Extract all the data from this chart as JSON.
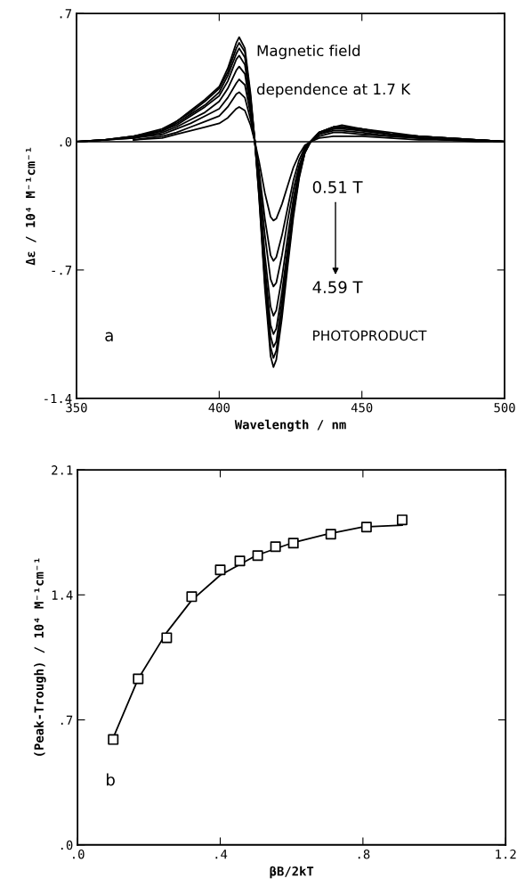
{
  "chart_data": [
    {
      "type": "line",
      "xlabel": "Wavelength / nm",
      "ylabel": "Δε / 10⁴ M⁻¹cm⁻¹",
      "x": [
        350,
        360,
        370,
        380,
        385,
        390,
        395,
        400,
        403,
        406,
        407,
        409,
        411,
        412.5,
        414,
        416,
        418,
        419,
        420,
        422,
        424,
        426,
        428,
        430,
        432,
        435,
        440,
        443,
        450,
        460,
        470,
        480,
        490,
        500
      ],
      "series": [
        {
          "color": "#000000",
          "values": [
            null,
            null,
            0.01,
            0.02,
            0.04,
            0.06,
            0.08,
            0.1,
            0.13,
            0.18,
            0.19,
            0.17,
            0.09,
            0,
            -0.11,
            -0.28,
            -0.41,
            -0.43,
            -0.42,
            -0.34,
            -0.24,
            -0.14,
            -0.07,
            -0.02,
            0,
            0.02,
            0.03,
            0.03,
            0.03,
            0.02,
            0.01,
            0.01,
            0.0,
            0.0
          ]
        },
        {
          "color": "#000000",
          "values": [
            null,
            null,
            0.01,
            0.03,
            0.05,
            0.08,
            0.11,
            0.14,
            0.19,
            0.26,
            0.27,
            0.24,
            0.12,
            0,
            -0.16,
            -0.42,
            -0.62,
            -0.65,
            -0.63,
            -0.51,
            -0.36,
            -0.21,
            -0.1,
            -0.03,
            0,
            0.03,
            0.05,
            0.05,
            0.04,
            0.03,
            0.02,
            0.01,
            0.01,
            0.0
          ]
        },
        {
          "color": "#000000",
          "values": [
            null,
            null,
            0.02,
            0.04,
            0.07,
            0.1,
            0.14,
            0.18,
            0.24,
            0.32,
            0.34,
            0.31,
            0.15,
            0,
            -0.2,
            -0.51,
            -0.75,
            -0.79,
            -0.77,
            -0.62,
            -0.43,
            -0.26,
            -0.13,
            -0.04,
            0,
            0.04,
            0.06,
            0.06,
            0.05,
            0.03,
            0.02,
            0.01,
            0.01,
            0.0
          ]
        },
        {
          "color": "#000000",
          "values": [
            0,
            0.01,
            0.02,
            0.05,
            0.08,
            0.12,
            0.16,
            0.22,
            0.29,
            0.39,
            0.41,
            0.37,
            0.18,
            0,
            -0.24,
            -0.62,
            -0.9,
            -0.95,
            -0.92,
            -0.74,
            -0.52,
            -0.31,
            -0.15,
            -0.05,
            0,
            0.04,
            0.07,
            0.07,
            0.06,
            0.04,
            0.02,
            0.01,
            0.01,
            0.0
          ]
        },
        {
          "color": "#000000",
          "values": [
            0,
            0.01,
            0.02,
            0.06,
            0.09,
            0.14,
            0.19,
            0.25,
            0.33,
            0.45,
            0.47,
            0.42,
            0.21,
            0,
            -0.26,
            -0.68,
            -1.0,
            -1.05,
            -1.02,
            -0.82,
            -0.58,
            -0.35,
            -0.17,
            -0.05,
            0,
            0.05,
            0.07,
            0.08,
            0.06,
            0.04,
            0.03,
            0.02,
            0.01,
            0.0
          ]
        },
        {
          "color": "#000000",
          "values": [
            0,
            0.01,
            0.03,
            0.06,
            0.1,
            0.15,
            0.2,
            0.27,
            0.36,
            0.48,
            0.51,
            0.46,
            0.23,
            0,
            -0.28,
            -0.73,
            -1.06,
            -1.12,
            -1.09,
            -0.87,
            -0.62,
            -0.37,
            -0.18,
            -0.06,
            0,
            0.05,
            0.08,
            0.08,
            0.07,
            0.04,
            0.03,
            0.02,
            0.01,
            0.0
          ]
        },
        {
          "color": "#000000",
          "values": [
            0,
            0.01,
            0.03,
            0.06,
            0.11,
            0.16,
            0.22,
            0.29,
            0.38,
            0.51,
            0.54,
            0.49,
            0.24,
            0,
            -0.3,
            -0.77,
            -1.12,
            -1.18,
            -1.14,
            -0.92,
            -0.65,
            -0.39,
            -0.19,
            -0.06,
            0,
            0.05,
            0.08,
            0.08,
            0.07,
            0.04,
            0.03,
            0.02,
            0.01,
            0.0
          ]
        },
        {
          "color": "#000000",
          "values": [
            0,
            0.01,
            0.03,
            0.07,
            0.11,
            0.17,
            0.23,
            0.3,
            0.4,
            0.54,
            0.57,
            0.51,
            0.26,
            0,
            -0.31,
            -0.8,
            -1.17,
            -1.23,
            -1.19,
            -0.96,
            -0.68,
            -0.41,
            -0.2,
            -0.06,
            0,
            0.05,
            0.08,
            0.09,
            0.07,
            0.05,
            0.03,
            0.02,
            0.01,
            0.0
          ]
        }
      ],
      "xlim": [
        350,
        500
      ],
      "xticks": [
        350,
        400,
        450,
        500
      ],
      "ylim": [
        -1.4,
        0.7
      ],
      "yticks": [
        {
          "value": -1.4,
          "label": "-1.4"
        },
        {
          "value": -0.7,
          "label": "-.7"
        },
        {
          "value": 0,
          "label": ".0"
        },
        {
          "value": 0.7,
          "label": ".7"
        }
      ],
      "ref_lines": [
        {
          "axis": "y",
          "value": 0,
          "color": "#000000"
        }
      ],
      "annotations": [
        "Magnetic field",
        "dependence at 1.7 K",
        "0.51 T",
        "4.59 T",
        "a",
        "PHOTOPRODUCT"
      ]
    },
    {
      "type": "scatter",
      "xlabel": "βB/2kT",
      "ylabel": "(Peak-Trough) / 10⁴ M⁻¹cm⁻¹",
      "series": [
        {
          "type": "scatter",
          "color": "#000000",
          "marker": "square",
          "x": [
            0.1,
            0.17,
            0.25,
            0.32,
            0.4,
            0.455,
            0.505,
            0.555,
            0.605,
            0.71,
            0.81,
            0.91
          ],
          "values": [
            0.59,
            0.93,
            1.16,
            1.39,
            1.54,
            1.59,
            1.62,
            1.67,
            1.69,
            1.74,
            1.78,
            1.82
          ]
        },
        {
          "type": "line",
          "color": "#000000",
          "x": [
            0.1,
            0.17,
            0.25,
            0.32,
            0.4,
            0.5,
            0.6,
            0.7,
            0.8,
            0.91
          ],
          "values": [
            0.6,
            0.93,
            1.19,
            1.37,
            1.51,
            1.62,
            1.69,
            1.74,
            1.78,
            1.79
          ]
        }
      ],
      "xlim": [
        0,
        1.2
      ],
      "xticks": [
        {
          "value": 0,
          "label": ".0"
        },
        {
          "value": 0.4,
          "label": ".4"
        },
        {
          "value": 0.8,
          "label": ".8"
        },
        {
          "value": 1.2,
          "label": "1.2"
        }
      ],
      "ylim": [
        0,
        2.1
      ],
      "yticks": [
        {
          "value": 0,
          "label": ".0"
        },
        {
          "value": 0.7,
          "label": ".7"
        },
        {
          "value": 1.4,
          "label": "1.4"
        },
        {
          "value": 2.1,
          "label": "2.1"
        }
      ],
      "annotations": [
        "b"
      ]
    }
  ]
}
